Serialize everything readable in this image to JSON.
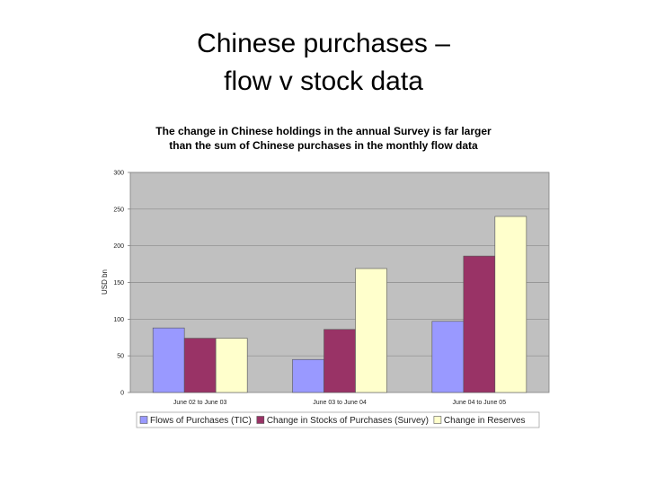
{
  "slide": {
    "title_line1": "Chinese purchases –",
    "title_line2": "flow v stock data"
  },
  "chart_data": {
    "type": "bar",
    "title_line1": "The change in Chinese holdings in the annual Survey is far larger",
    "title_line2": "than the sum of Chinese purchases in the monthly flow data",
    "xlabel": "",
    "ylabel": "USD bn",
    "ylim": [
      0,
      300
    ],
    "yticks": [
      0,
      50,
      100,
      150,
      200,
      250,
      300
    ],
    "grid": true,
    "legend_position": "bottom",
    "categories": [
      "June 02 to June 03",
      "June 03 to June 04",
      "June 04 to June 05"
    ],
    "series": [
      {
        "name": "Flows of Purchases (TIC)",
        "color": "#9999FF",
        "values": [
          88,
          45,
          97
        ]
      },
      {
        "name": "Change in Stocks of Purchases (Survey)",
        "color": "#993366",
        "values": [
          74,
          86,
          186
        ]
      },
      {
        "name": "Change in Reserves",
        "color": "#FFFFCC",
        "values": [
          74,
          169,
          240
        ]
      }
    ],
    "plot_background": "#C0C0C0"
  }
}
